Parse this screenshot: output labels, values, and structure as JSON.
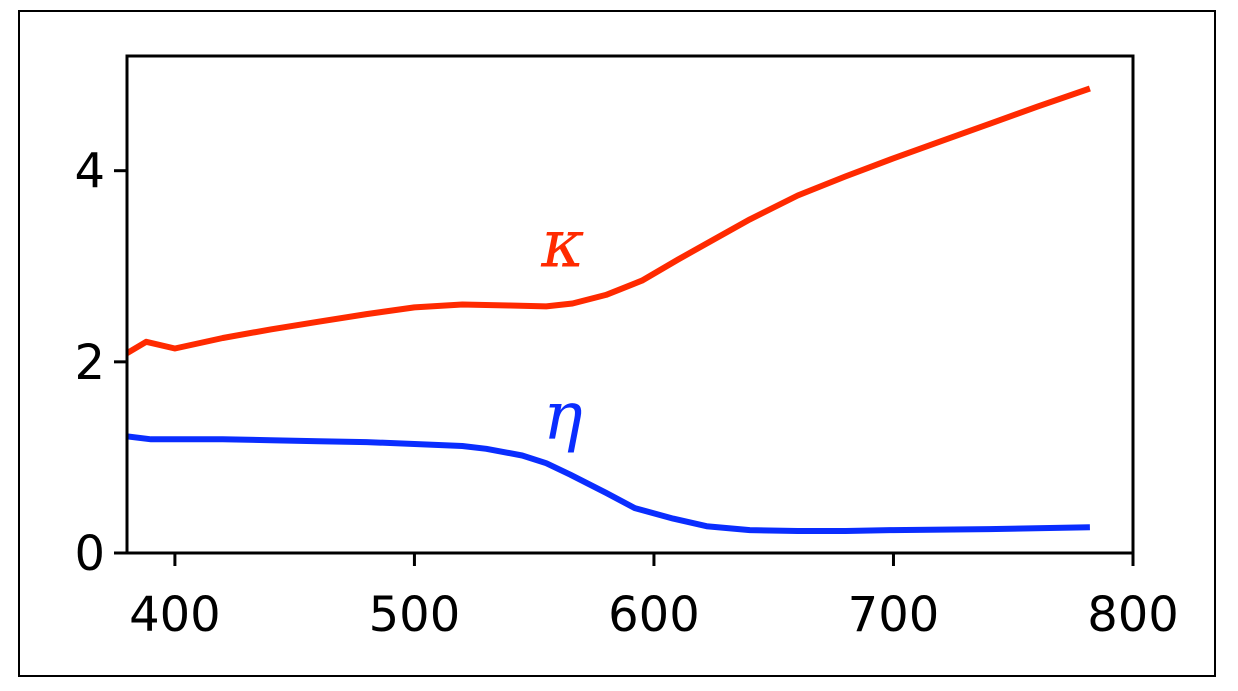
{
  "chart_data": {
    "type": "line",
    "title": "",
    "xlabel": "",
    "ylabel": "",
    "xlim": [
      380,
      800
    ],
    "ylim": [
      0,
      5.2
    ],
    "grid": false,
    "legend": "none",
    "x_ticks": [
      "400",
      "500",
      "600",
      "700",
      "800"
    ],
    "y_ticks": [
      "0",
      "2",
      "4"
    ],
    "series": [
      {
        "name": "κ",
        "color": "#ff2a00",
        "label_at": [
          562,
          3.0
        ],
        "points": [
          [
            380,
            2.09
          ],
          [
            388,
            2.21
          ],
          [
            400,
            2.14
          ],
          [
            420,
            2.25
          ],
          [
            440,
            2.34
          ],
          [
            460,
            2.42
          ],
          [
            480,
            2.5
          ],
          [
            500,
            2.57
          ],
          [
            520,
            2.6
          ],
          [
            540,
            2.59
          ],
          [
            555,
            2.58
          ],
          [
            566,
            2.61
          ],
          [
            580,
            2.7
          ],
          [
            595,
            2.85
          ],
          [
            610,
            3.07
          ],
          [
            625,
            3.28
          ],
          [
            640,
            3.49
          ],
          [
            660,
            3.74
          ],
          [
            680,
            3.94
          ],
          [
            700,
            4.13
          ],
          [
            720,
            4.31
          ],
          [
            740,
            4.49
          ],
          [
            760,
            4.67
          ],
          [
            782,
            4.86
          ]
        ]
      },
      {
        "name": "η",
        "color": "#0a2dff",
        "label_at": [
          562,
          1.2
        ],
        "points": [
          [
            380,
            1.22
          ],
          [
            390,
            1.19
          ],
          [
            400,
            1.19
          ],
          [
            420,
            1.19
          ],
          [
            440,
            1.18
          ],
          [
            460,
            1.17
          ],
          [
            480,
            1.16
          ],
          [
            500,
            1.14
          ],
          [
            520,
            1.12
          ],
          [
            530,
            1.09
          ],
          [
            545,
            1.02
          ],
          [
            555,
            0.94
          ],
          [
            565,
            0.82
          ],
          [
            580,
            0.63
          ],
          [
            592,
            0.47
          ],
          [
            608,
            0.36
          ],
          [
            622,
            0.28
          ],
          [
            640,
            0.24
          ],
          [
            660,
            0.23
          ],
          [
            680,
            0.23
          ],
          [
            700,
            0.24
          ],
          [
            740,
            0.25
          ],
          [
            782,
            0.27
          ]
        ]
      }
    ]
  }
}
